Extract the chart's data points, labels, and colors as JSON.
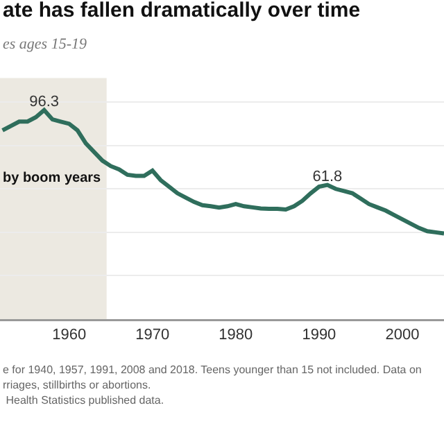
{
  "chart_data": {
    "type": "line",
    "title": "ate has fallen dramatically over time",
    "subtitle": "es ages 15-19",
    "x": [
      1952,
      1953,
      1954,
      1955,
      1956,
      1957,
      1958,
      1959,
      1960,
      1961,
      1962,
      1963,
      1964,
      1965,
      1966,
      1967,
      1968,
      1969,
      1970,
      1971,
      1972,
      1973,
      1974,
      1975,
      1976,
      1977,
      1978,
      1979,
      1980,
      1981,
      1982,
      1983,
      1984,
      1985,
      1986,
      1987,
      1988,
      1989,
      1990,
      1991,
      1992,
      1993,
      1994,
      1995,
      1996,
      1997,
      1998,
      1999,
      2000,
      2001,
      2002,
      2003,
      2004,
      2005
    ],
    "series": [
      {
        "color": "#2f6e5c",
        "values": [
          87,
          89,
          91,
          91,
          93,
          96.3,
          92,
          91,
          90,
          87,
          81,
          77,
          73,
          70.5,
          69,
          66.5,
          66,
          66,
          68.4,
          64,
          61,
          58,
          56,
          54,
          52.5,
          52,
          51.4,
          52,
          53,
          52,
          51.5,
          51,
          50.8,
          50.8,
          50.5,
          52,
          54.5,
          58,
          61,
          61.8,
          60,
          59,
          58,
          55.5,
          53,
          51.5,
          50,
          48,
          46,
          44,
          42,
          40.5,
          40,
          39.5
        ],
        "value_labels": [
          null,
          null,
          null,
          null,
          null,
          "96.3",
          null,
          null,
          null,
          null,
          null,
          null,
          null,
          null,
          null,
          null,
          null,
          null,
          null,
          null,
          null,
          null,
          null,
          null,
          null,
          null,
          null,
          null,
          null,
          null,
          null,
          null,
          null,
          null,
          null,
          null,
          null,
          null,
          null,
          "61.8",
          null,
          null,
          null,
          null,
          null,
          null,
          null,
          null,
          null,
          null,
          null,
          null,
          null,
          null
        ]
      }
    ],
    "xlim": [
      1951.7,
      2005
    ],
    "xticks": [
      1960,
      1970,
      1980,
      1990,
      2000
    ],
    "ylim": [
      0,
      101
    ],
    "yticks": [
      {
        "value": 20,
        "label": null
      },
      {
        "value": 40,
        "label": null
      },
      {
        "value": 60,
        "label": null
      },
      {
        "value": 80,
        "label": null
      },
      {
        "value": 100,
        "label": null
      }
    ],
    "tick_labels": "x",
    "grid": "y",
    "legend": false,
    "marker": "none",
    "line_style": "solid",
    "bands": [
      {
        "axis": "x",
        "from": 1946,
        "to": 1964.5,
        "label": "by boom years",
        "color": "#ece9e1"
      }
    ],
    "annotations": [
      "e for 1940, 1957, 1991, 2008 and 2018. Teens younger than 15 not included. Data on",
      "rriages, stillbirths or abortions.",
      " Health Statistics published data."
    ]
  }
}
